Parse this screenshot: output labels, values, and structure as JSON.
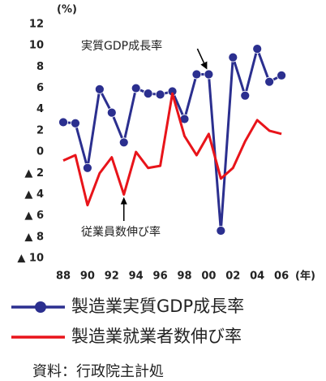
{
  "chart_data": {
    "type": "line",
    "y_unit": "(%)",
    "x_unit": "(年)",
    "categories": [
      "88",
      null,
      "90",
      null,
      "92",
      null,
      "94",
      null,
      "96",
      null,
      "98",
      null,
      "00",
      null,
      "02",
      null,
      "04",
      null,
      "06"
    ],
    "series": [
      {
        "name": "製造業実質GDP成長率",
        "color": "#2b2f8f",
        "marker": "circle",
        "values": [
          2.8,
          2.7,
          -1.5,
          5.9,
          3.7,
          0.9,
          6.0,
          5.5,
          5.4,
          5.7,
          3.1,
          7.3,
          7.3,
          -7.4,
          8.9,
          5.3,
          9.7,
          6.6,
          7.2
        ]
      },
      {
        "name": "製造業就業者数伸び率",
        "color": "#e8141a",
        "values": [
          -0.8,
          -0.3,
          -5.0,
          -2.0,
          -0.5,
          -4.0,
          0.0,
          -1.5,
          -1.3,
          5.5,
          1.5,
          -0.3,
          1.7,
          -2.5,
          -1.5,
          1.0,
          3.0,
          2.0,
          1.7
        ]
      }
    ],
    "ylim": [
      -10,
      12
    ],
    "yticks": [
      12,
      10,
      8,
      6,
      4,
      2,
      0,
      {
        "value": -2,
        "label": "▲ 2"
      },
      {
        "value": -4,
        "label": "▲ 4"
      },
      {
        "value": -6,
        "label": "▲ 6"
      },
      {
        "value": -8,
        "label": "▲ 8"
      },
      {
        "value": -10,
        "label": "▲ 10"
      }
    ],
    "annotations": [
      {
        "text": "実質GDP成長率",
        "series": 0,
        "index": 12
      },
      {
        "text": "従業員数伸び率",
        "series": 1,
        "index": 5
      }
    ],
    "source": "資料：行政院主計処",
    "grid": false
  }
}
